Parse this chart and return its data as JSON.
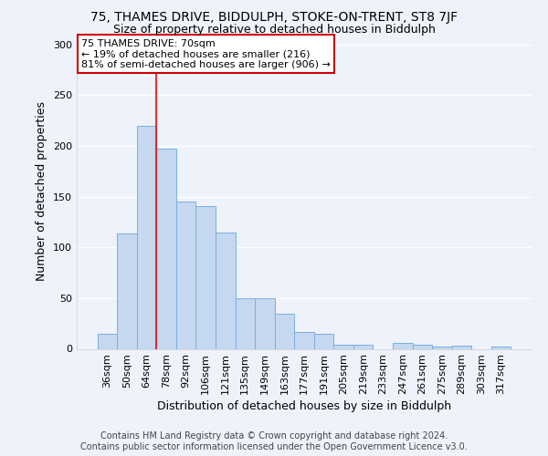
{
  "title_line1": "75, THAMES DRIVE, BIDDULPH, STOKE-ON-TRENT, ST8 7JF",
  "title_line2": "Size of property relative to detached houses in Biddulph",
  "xlabel": "Distribution of detached houses by size in Biddulph",
  "ylabel": "Number of detached properties",
  "categories": [
    "36sqm",
    "50sqm",
    "64sqm",
    "78sqm",
    "92sqm",
    "106sqm",
    "121sqm",
    "135sqm",
    "149sqm",
    "163sqm",
    "177sqm",
    "191sqm",
    "205sqm",
    "219sqm",
    "233sqm",
    "247sqm",
    "261sqm",
    "275sqm",
    "289sqm",
    "303sqm",
    "317sqm"
  ],
  "values": [
    15,
    114,
    220,
    197,
    145,
    141,
    115,
    50,
    50,
    35,
    17,
    15,
    4,
    4,
    0,
    6,
    4,
    2,
    3,
    0,
    2
  ],
  "bar_color": "#c5d8f0",
  "bar_edge_color": "#7aafe0",
  "red_line_index": 2,
  "annotation_text": "75 THAMES DRIVE: 70sqm\n← 19% of detached houses are smaller (216)\n81% of semi-detached houses are larger (906) →",
  "annotation_box_color": "#ffffff",
  "annotation_box_edge": "#cc0000",
  "ylim": [
    0,
    310
  ],
  "yticks": [
    0,
    50,
    100,
    150,
    200,
    250,
    300
  ],
  "footer_line1": "Contains HM Land Registry data © Crown copyright and database right 2024.",
  "footer_line2": "Contains public sector information licensed under the Open Government Licence v3.0.",
  "bg_color": "#eef2fb",
  "grid_color": "#ffffff",
  "title_fontsize": 10,
  "subtitle_fontsize": 9,
  "axis_label_fontsize": 9,
  "tick_fontsize": 8,
  "annotation_fontsize": 8,
  "footer_fontsize": 7
}
